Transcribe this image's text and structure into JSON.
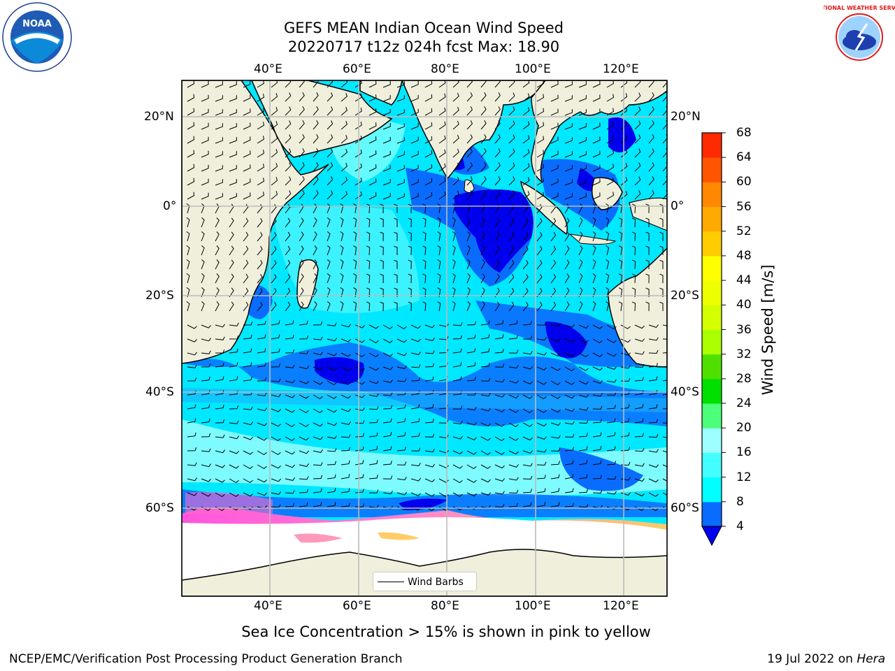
{
  "header": {
    "title_line1": "GEFS MEAN Indian Ocean Wind Speed",
    "title_line2": "20220717 t12z 024h fcst   Max: 18.90"
  },
  "logos": {
    "left": {
      "name": "noaa-logo",
      "text": "NOAA"
    },
    "right": {
      "name": "nws-logo",
      "text": "NATIONAL WEATHER SERVICE"
    }
  },
  "map": {
    "lon_ticks": [
      "40°E",
      "60°E",
      "80°E",
      "100°E",
      "120°E"
    ],
    "lat_ticks": [
      "20°N",
      "0°",
      "20°S",
      "40°S",
      "60°S"
    ],
    "colors": {
      "land": "#efefdc",
      "ice": "#ffffff",
      "frame": "#000000"
    }
  },
  "colorbar": {
    "label": "Wind Speed [m/s]",
    "ticks": [
      "4",
      "8",
      "12",
      "16",
      "20",
      "24",
      "28",
      "32",
      "36",
      "40",
      "44",
      "48",
      "52",
      "56",
      "60",
      "64",
      "68"
    ],
    "colors": [
      "#0a6cff",
      "#00ffff",
      "#44ffff",
      "#9dffff",
      "#4cff7a",
      "#00e000",
      "#50e000",
      "#aaff00",
      "#d4ff00",
      "#eeff00",
      "#ffff00",
      "#ffcc00",
      "#ffaa00",
      "#ff8800",
      "#ff5500",
      "#ff2a00"
    ],
    "under_color": "#0000ee"
  },
  "legend": {
    "label": "Wind Barbs"
  },
  "footer": {
    "note": "Sea Ice Concentration > 15% is shown in pink to yellow",
    "credit": "NCEP/EMC/Verification Post Processing Product Generation Branch",
    "date": "19 Jul 2022 on",
    "host": "Hera"
  }
}
